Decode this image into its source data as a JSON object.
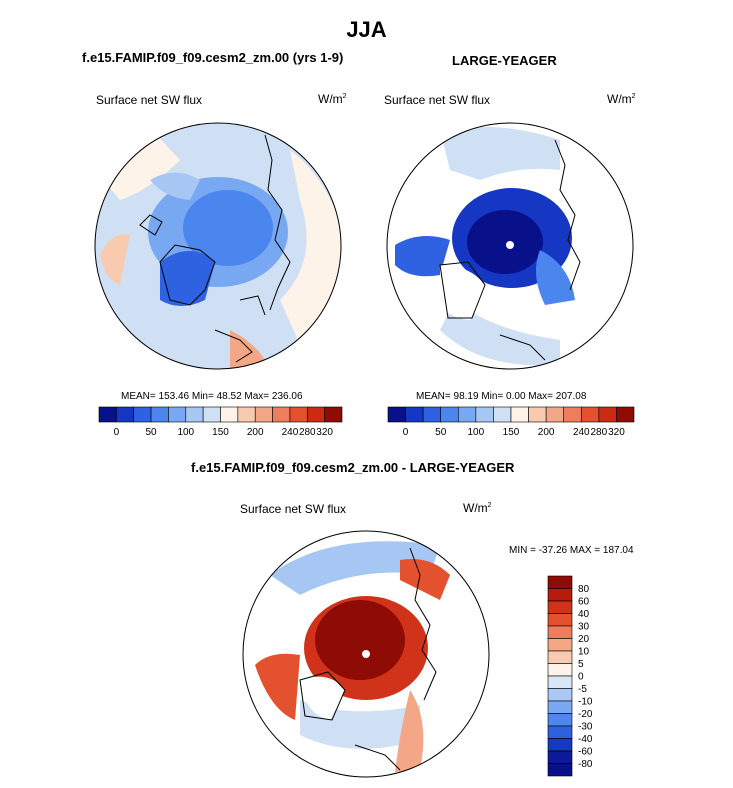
{
  "figure": {
    "title": "JJA",
    "panel_left": {
      "case_title": "f.e15.FAMIP.f09_f09.cesm2_zm.00 (yrs 1-9)",
      "variable": "Surface net SW flux",
      "units_base": "W/m",
      "units_exp": "2",
      "stats": "MEAN= 153.46  Min=  48.52  Max= 236.06",
      "colorbar": {
        "ticks": [
          "0",
          "50",
          "100",
          "150",
          "200",
          "240",
          "280",
          "320"
        ],
        "colors": [
          "#08108a",
          "#1537c4",
          "#2e62e0",
          "#4b86ee",
          "#78a8f2",
          "#a6c6f4",
          "#d0e0f4",
          "#fdf3e8",
          "#f8cbb0",
          "#f4a787",
          "#ee7d5e",
          "#e4512f",
          "#cc2a13",
          "#8f0b06"
        ]
      }
    },
    "panel_right": {
      "case_title": "LARGE-YEAGER",
      "variable": "Surface net SW flux",
      "units_base": "W/m",
      "units_exp": "2",
      "stats": "MEAN=  98.19  Min=   0.00  Max= 207.08",
      "colorbar": {
        "ticks": [
          "0",
          "50",
          "100",
          "150",
          "200",
          "240",
          "280",
          "320"
        ],
        "colors": [
          "#08108a",
          "#1537c4",
          "#2e62e0",
          "#4b86ee",
          "#78a8f2",
          "#a6c6f4",
          "#d0e0f4",
          "#fdf3e8",
          "#f8cbb0",
          "#f4a787",
          "#ee7d5e",
          "#e4512f",
          "#cc2a13",
          "#8f0b06"
        ]
      }
    },
    "panel_diff": {
      "case_title": "f.e15.FAMIP.f09_f09.cesm2_zm.00 - LARGE-YEAGER",
      "variable": "Surface net SW flux",
      "units_base": "W/m",
      "units_exp": "2",
      "stats": "MIN = -37.26 MAX = 187.04",
      "colorbar": {
        "ticks": [
          "80",
          "60",
          "40",
          "30",
          "20",
          "10",
          "5",
          "0",
          "-5",
          "-10",
          "-20",
          "-30",
          "-40",
          "-60",
          "-80"
        ],
        "colors": [
          "#8f0b06",
          "#b81a0c",
          "#d1331a",
          "#e4512f",
          "#ee7d5e",
          "#f4a787",
          "#f8cbb0",
          "#fdf3e8",
          "#d8e6f6",
          "#a9c8f3",
          "#7aa9f1",
          "#4f88ec",
          "#2d62df",
          "#1539bf",
          "#0b1a96",
          "#08108a"
        ]
      }
    }
  }
}
